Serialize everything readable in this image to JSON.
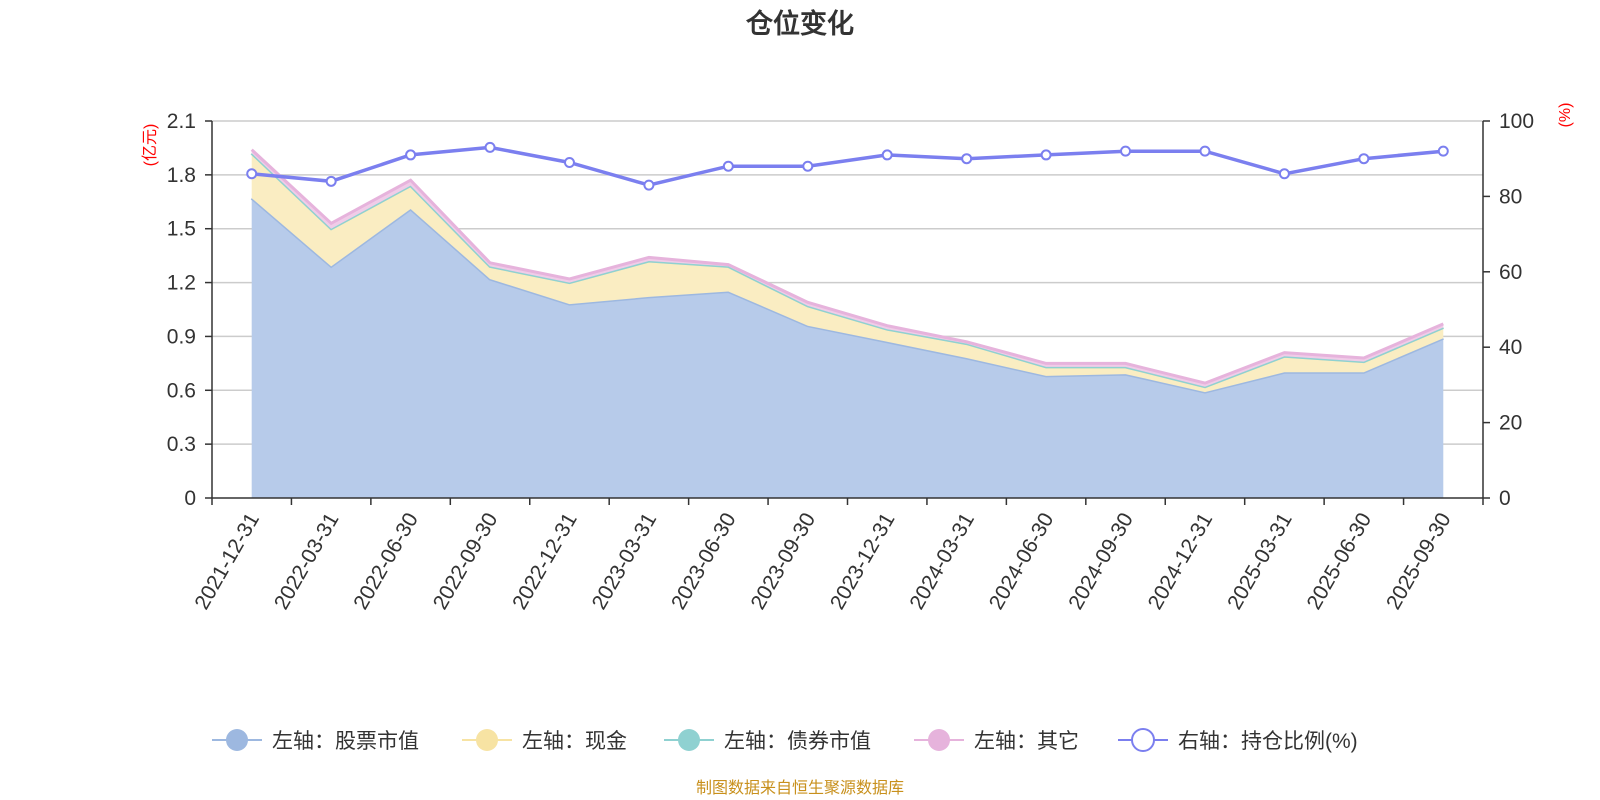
{
  "chart_data": {
    "type": "area",
    "title": "仓位变化",
    "left_axis": {
      "unit": "(亿元)",
      "min": 0,
      "max": 2.1,
      "ticks": [
        "0",
        "0.3",
        "0.6",
        "0.9",
        "1.2",
        "1.5",
        "1.8",
        "2.1"
      ]
    },
    "right_axis": {
      "unit": "(%)",
      "min": 0,
      "max": 100,
      "ticks": [
        "0",
        "20",
        "40",
        "60",
        "80",
        "100"
      ]
    },
    "categories": [
      "2021-12-31",
      "2022-03-31",
      "2022-06-30",
      "2022-09-30",
      "2022-12-31",
      "2023-03-31",
      "2023-06-30",
      "2023-09-30",
      "2023-12-31",
      "2024-03-31",
      "2024-06-30",
      "2024-09-30",
      "2024-12-31",
      "2025-03-31",
      "2025-06-30",
      "2025-09-30"
    ],
    "series": [
      {
        "name": "左轴：股票市值",
        "axis": "left",
        "stack": true,
        "color": "#9db8e0",
        "fill": "#b7cbea",
        "values": [
          1.67,
          1.29,
          1.61,
          1.22,
          1.08,
          1.12,
          1.15,
          0.96,
          0.87,
          0.78,
          0.68,
          0.69,
          0.59,
          0.7,
          0.7,
          0.89
        ]
      },
      {
        "name": "左轴：现金",
        "axis": "left",
        "stack": true,
        "color": "#f7e3a3",
        "fill": "#faedc2",
        "values": [
          0.25,
          0.21,
          0.13,
          0.07,
          0.12,
          0.2,
          0.14,
          0.11,
          0.07,
          0.08,
          0.05,
          0.04,
          0.03,
          0.09,
          0.06,
          0.06
        ]
      },
      {
        "name": "左轴：债券市值",
        "axis": "left",
        "stack": true,
        "color": "#8fd1d1",
        "fill": "#aadddd",
        "values": [
          0,
          0,
          0,
          0,
          0,
          0,
          0,
          0,
          0,
          0,
          0,
          0,
          0,
          0,
          0,
          0
        ]
      },
      {
        "name": "左轴：其它",
        "axis": "left",
        "stack": true,
        "color": "#e6b3dc",
        "fill": "#f0cce8",
        "values": [
          0.02,
          0.03,
          0.03,
          0.02,
          0.02,
          0.02,
          0.01,
          0.02,
          0.02,
          0.01,
          0.02,
          0.02,
          0.02,
          0.02,
          0.02,
          0.02
        ]
      },
      {
        "name": "右轴：持仓比例(%)",
        "axis": "right",
        "stack": false,
        "color": "#7b7fef",
        "values": [
          86,
          84,
          91,
          93,
          89,
          83,
          88,
          88,
          91,
          90,
          91,
          92,
          92,
          86,
          90,
          92
        ]
      }
    ],
    "grid": true,
    "legend_position": "bottom"
  },
  "source": "制图数据来自恒生聚源数据库"
}
